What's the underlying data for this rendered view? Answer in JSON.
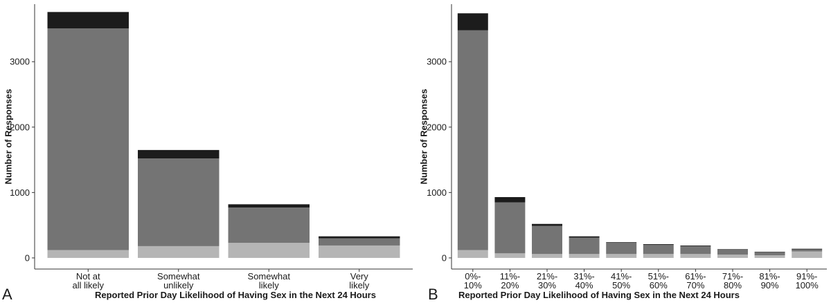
{
  "colors": {
    "no_sex": "#b5b5b5",
    "sex": "#747474",
    "missing": "#1c1c1c",
    "axis": "#333333"
  },
  "chart_data": [
    {
      "type": "bar",
      "stacked": true,
      "panel_label": "A",
      "xlabel": "Reported Prior Day Likelihood of Having Sex in the Next 24 Hours",
      "ylabel": "Number of Responses",
      "yticks": [
        0,
        1000,
        2000,
        3000
      ],
      "ylim": [
        -170,
        3880
      ],
      "grid": false,
      "categories": [
        [
          "Not at",
          "all likely"
        ],
        [
          "Somewhat",
          "unlikely"
        ],
        [
          "Somewhat",
          "likely"
        ],
        [
          "Very",
          "likely"
        ]
      ],
      "series": [
        {
          "values": [
            120,
            180,
            230,
            190
          ],
          "color": "#b5b5b5"
        },
        {
          "values": [
            3390,
            1340,
            540,
            110
          ],
          "color": "#747474"
        },
        {
          "values": [
            250,
            130,
            50,
            30
          ],
          "color": "#1c1c1c"
        }
      ]
    },
    {
      "type": "bar",
      "stacked": true,
      "panel_label": "B",
      "xlabel": "Reported Prior Day Likelihood of Having Sex in the Next 24 Hours",
      "ylabel": "Number of Responses",
      "yticks": [
        0,
        1000,
        2000,
        3000
      ],
      "ylim": [
        -170,
        3880
      ],
      "grid": false,
      "categories": [
        [
          "0%-",
          "10%"
        ],
        [
          "11%-",
          "20%"
        ],
        [
          "21%-",
          "30%"
        ],
        [
          "31%-",
          "40%"
        ],
        [
          "41%-",
          "50%"
        ],
        [
          "51%-",
          "60%"
        ],
        [
          "61%-",
          "70%"
        ],
        [
          "71%-",
          "80%"
        ],
        [
          "81%-",
          "90%"
        ],
        [
          "91%-",
          "100%"
        ]
      ],
      "series": [
        {
          "values": [
            120,
            70,
            60,
            60,
            60,
            60,
            60,
            50,
            40,
            100
          ],
          "color": "#b5b5b5"
        },
        {
          "values": [
            3360,
            780,
            430,
            250,
            170,
            140,
            120,
            80,
            50,
            30
          ],
          "color": "#747474"
        },
        {
          "values": [
            260,
            80,
            30,
            20,
            10,
            10,
            10,
            5,
            5,
            10
          ],
          "color": "#1c1c1c"
        }
      ]
    }
  ]
}
